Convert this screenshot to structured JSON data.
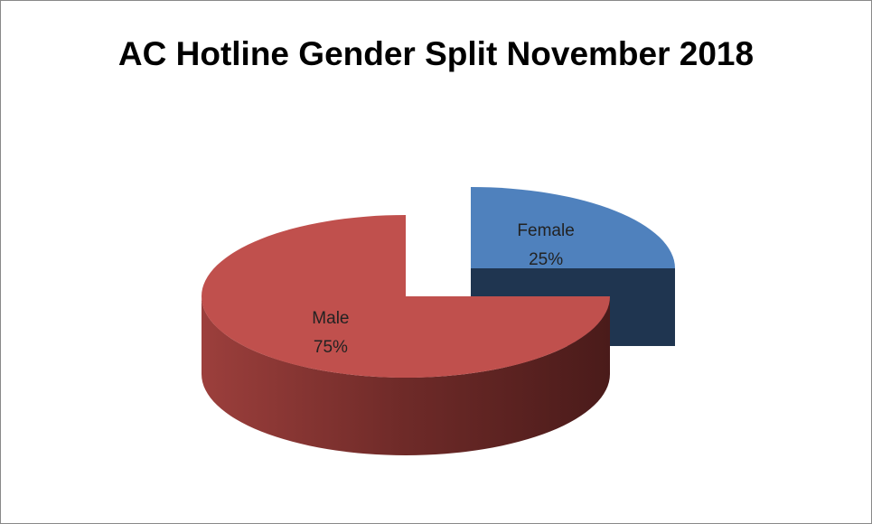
{
  "chart_data": {
    "type": "pie",
    "title": "AC Hotline Gender Split November 2018",
    "categories": [
      "Female",
      "Male"
    ],
    "values": [
      25,
      75
    ],
    "value_labels": [
      "25%",
      "75%"
    ],
    "colors": [
      "#4f81bd",
      "#c0504d"
    ],
    "explode": [
      true,
      false
    ]
  }
}
